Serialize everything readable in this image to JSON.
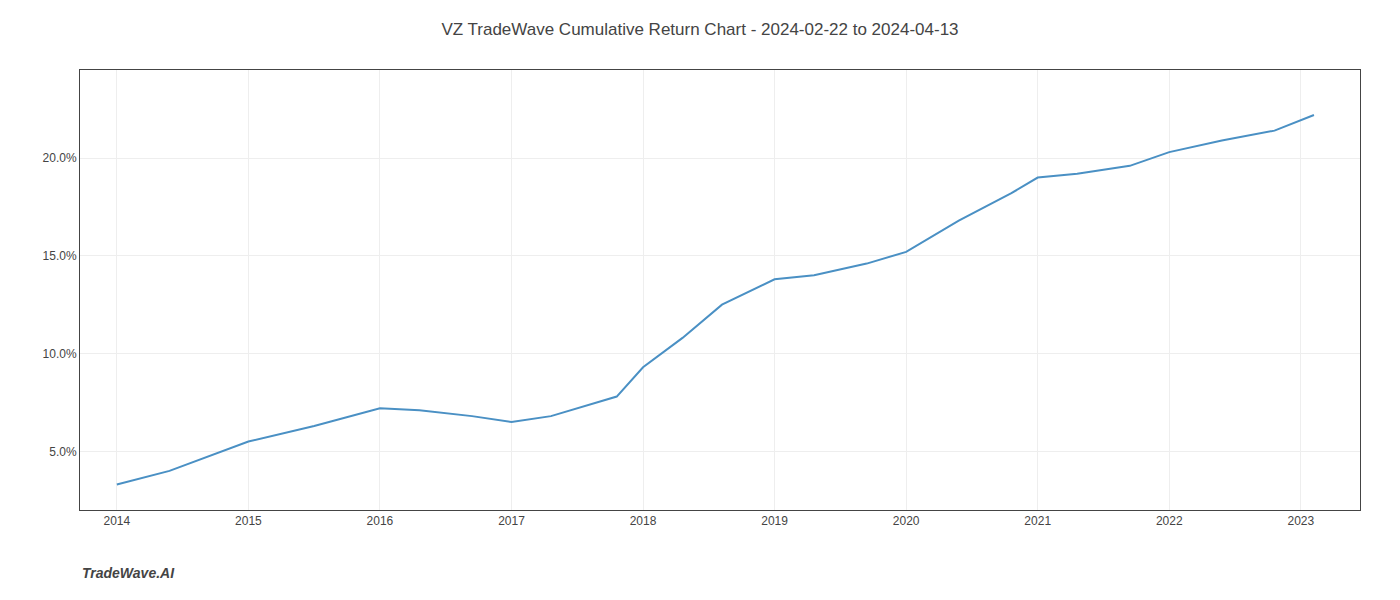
{
  "chart_data": {
    "type": "line",
    "title": "VZ TradeWave Cumulative Return Chart - 2024-02-22 to 2024-04-13",
    "annotations": [
      "TradeWave.AI"
    ],
    "x": [
      2014.0,
      2014.4,
      2015.0,
      2015.5,
      2016.0,
      2016.3,
      2016.7,
      2017.0,
      2017.3,
      2017.8,
      2018.0,
      2018.3,
      2018.6,
      2018.85,
      2019.0,
      2019.3,
      2019.7,
      2020.0,
      2020.4,
      2020.8,
      2021.0,
      2021.3,
      2021.7,
      2022.0,
      2022.4,
      2022.8,
      2023.1
    ],
    "values": [
      3.3,
      4.0,
      5.5,
      6.3,
      7.2,
      7.1,
      6.8,
      6.5,
      6.8,
      7.8,
      9.3,
      10.8,
      12.5,
      13.3,
      13.8,
      14.0,
      14.6,
      15.2,
      16.8,
      18.2,
      19.0,
      19.2,
      19.6,
      20.3,
      20.9,
      21.4,
      22.2
    ],
    "color": "#4a90c4",
    "xlim": [
      2013.72,
      2023.45
    ],
    "ylim": [
      2.0,
      24.5
    ],
    "xticks": [
      2014,
      2015,
      2016,
      2017,
      2018,
      2019,
      2020,
      2021,
      2022,
      2023
    ],
    "yticks": [
      {
        "value": 5.0,
        "label": "5.0%"
      },
      {
        "value": 10.0,
        "label": "10.0%"
      },
      {
        "value": 15.0,
        "label": "15.0%"
      },
      {
        "value": 20.0,
        "label": "20.0%"
      }
    ],
    "grid": true
  }
}
